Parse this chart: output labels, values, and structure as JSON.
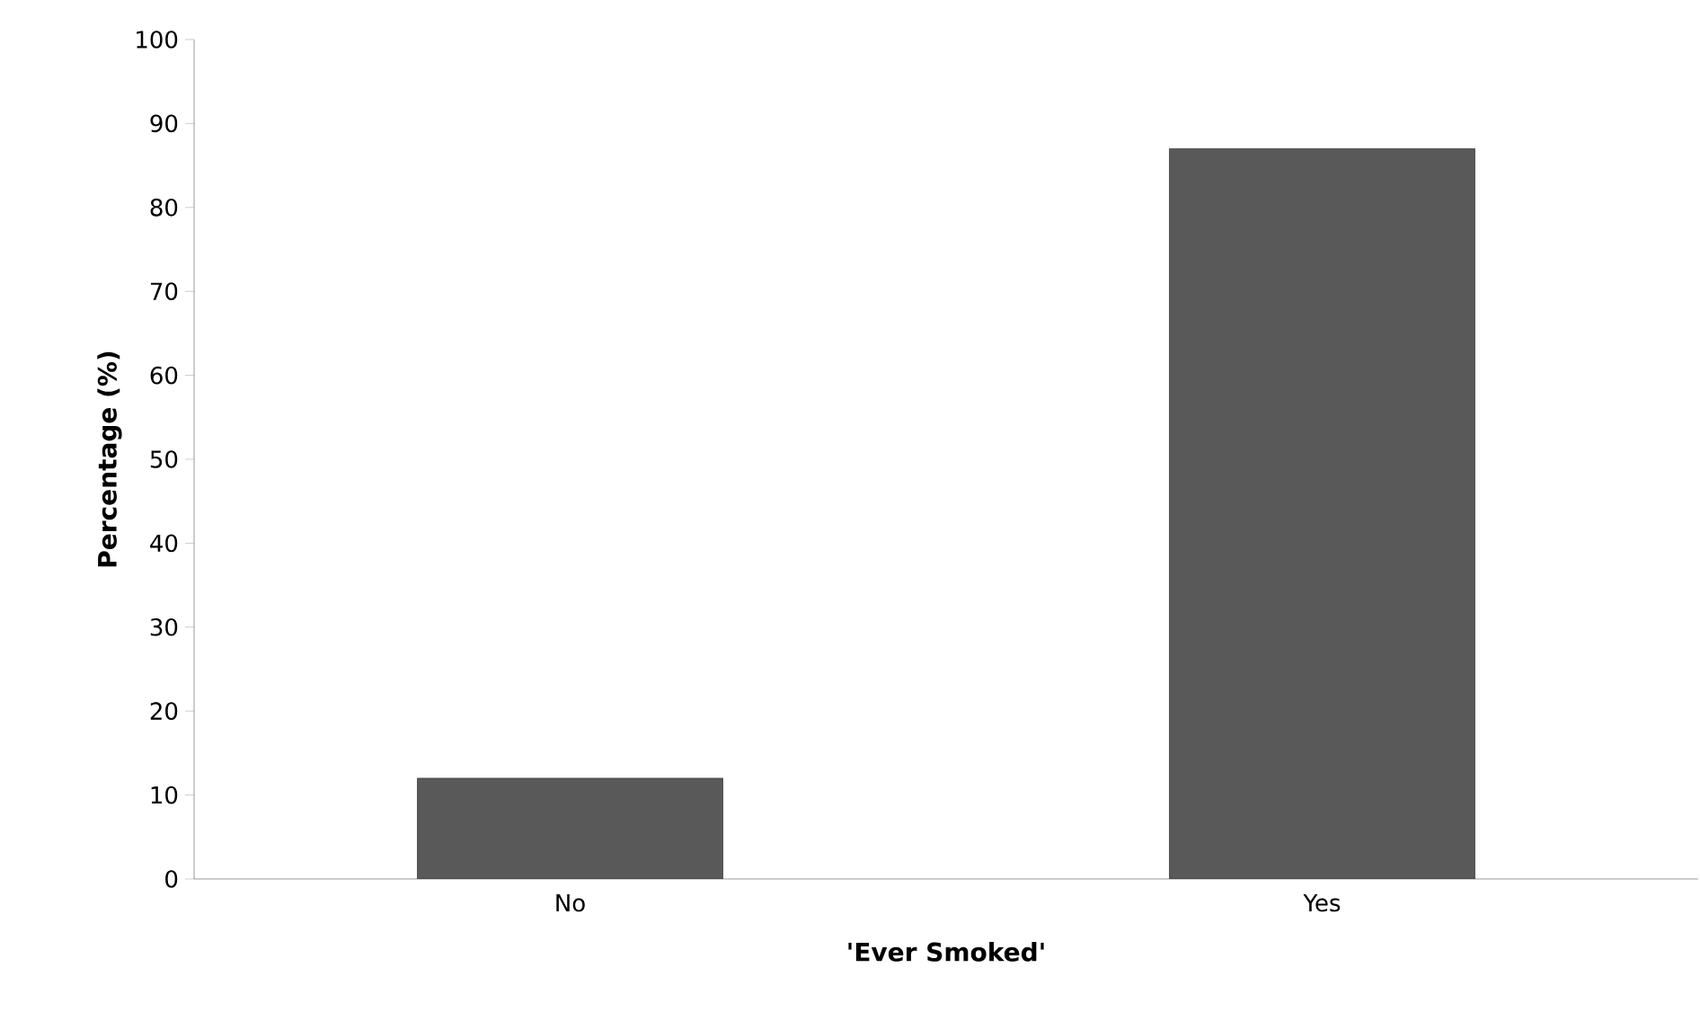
{
  "chart_data": {
    "type": "bar",
    "xlabel": "'Ever Smoked'",
    "ylabel": "Percentage (%)",
    "categories": [
      "No",
      "Yes"
    ],
    "values": [
      12,
      87
    ],
    "color": "#595959",
    "ylim": [
      0,
      100
    ],
    "yticks": [
      0,
      10,
      20,
      30,
      40,
      50,
      60,
      70,
      80,
      90,
      100
    ],
    "grid": false
  }
}
